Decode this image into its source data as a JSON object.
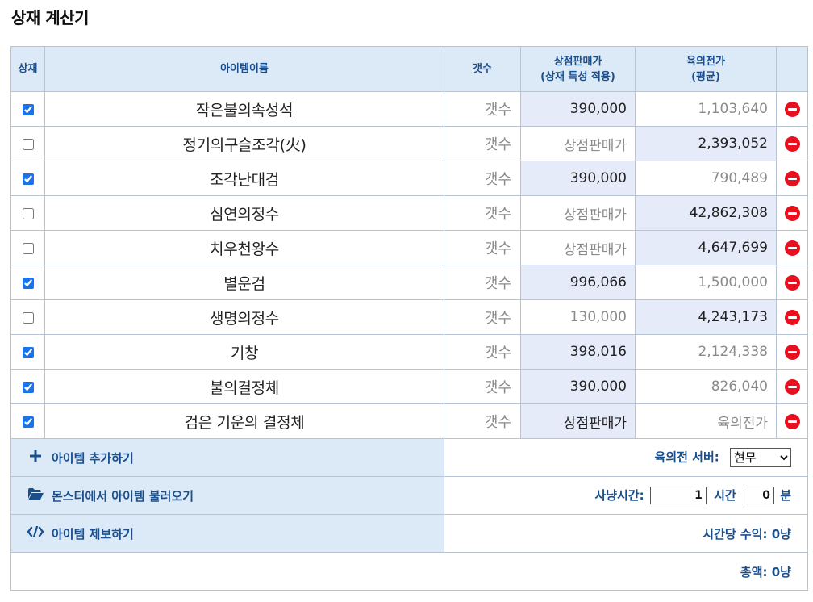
{
  "title": "상재 계산기",
  "headers": {
    "check": "상재",
    "name": "아이템이름",
    "count": "갯수",
    "shop_line1": "상점판매가",
    "shop_line2": "(상재 특성 적용)",
    "avg_line1": "육의전가",
    "avg_line2": "(평균)"
  },
  "items": [
    {
      "checked": true,
      "name": "작은불의속성석",
      "count": "갯수",
      "shop": "390,000",
      "avg": "1,103,640",
      "highlight": "shop"
    },
    {
      "checked": false,
      "name": "정기의구슬조각(火)",
      "count": "갯수",
      "shop": "상점판매가",
      "avg": "2,393,052",
      "highlight": "avg"
    },
    {
      "checked": true,
      "name": "조각난대검",
      "count": "갯수",
      "shop": "390,000",
      "avg": "790,489",
      "highlight": "shop"
    },
    {
      "checked": false,
      "name": "심연의정수",
      "count": "갯수",
      "shop": "상점판매가",
      "avg": "42,862,308",
      "highlight": "avg"
    },
    {
      "checked": false,
      "name": "치우천왕수",
      "count": "갯수",
      "shop": "상점판매가",
      "avg": "4,647,699",
      "highlight": "avg"
    },
    {
      "checked": true,
      "name": "별운검",
      "count": "갯수",
      "shop": "996,066",
      "avg": "1,500,000",
      "highlight": "shop"
    },
    {
      "checked": false,
      "name": "생명의정수",
      "count": "갯수",
      "shop": "130,000",
      "avg": "4,243,173",
      "highlight": "avg"
    },
    {
      "checked": true,
      "name": "기창",
      "count": "갯수",
      "shop": "398,016",
      "avg": "2,124,338",
      "highlight": "shop"
    },
    {
      "checked": true,
      "name": "불의결정체",
      "count": "갯수",
      "shop": "390,000",
      "avg": "826,040",
      "highlight": "shop"
    },
    {
      "checked": true,
      "name": "검은 기운의 결정체",
      "count": "갯수",
      "shop": "상점판매가",
      "avg": "육의전가",
      "highlight": "shop"
    }
  ],
  "actions": {
    "add_item": "아이템 추가하기",
    "load_monster": "몬스터에서 아이템 불러오기",
    "report_item": "아이템 제보하기"
  },
  "settings": {
    "server_label": "육의전 서버:",
    "server_value": "현무",
    "hunt_label": "사냥시간:",
    "hours_value": "1",
    "hours_unit": "시간",
    "minutes_value": "0",
    "minutes_unit": "분",
    "hourly_label": "시간당 수익:",
    "hourly_value": "0냥",
    "total_label": "총액:",
    "total_value": "0냥"
  },
  "colors": {
    "header_bg": "#dceaf7",
    "header_text": "#1a4f8e",
    "highlight_bg": "#e6ebfa",
    "delete_icon": "#e8101e"
  }
}
